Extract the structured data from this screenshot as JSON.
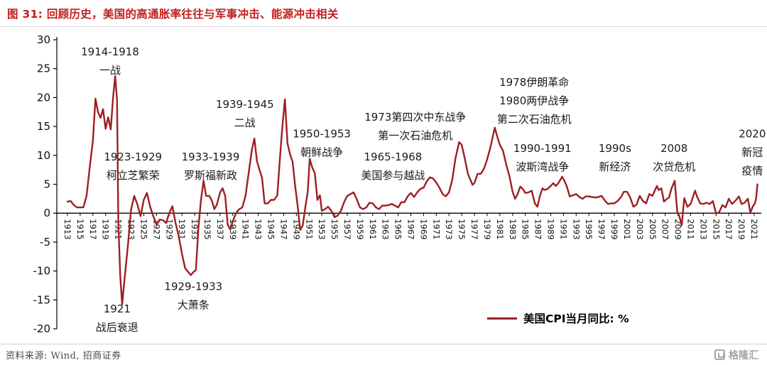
{
  "header": {
    "title": "图 31: 回顾历史，美国的高通胀率往往与军事冲击、能源冲击相关"
  },
  "colors": {
    "title_red": "#C01E1E",
    "line_red": "#9C1F24"
  },
  "footer": {
    "source": "资料来源: Wind, 招商证券",
    "logo_text": "格隆汇"
  },
  "chart_data": {
    "type": "line",
    "title": "回顾历史，美国的高通胀率往往与军事冲击、能源冲击相关",
    "legend_label": "美国CPI当月同比: %",
    "legend_position": "bottom-right",
    "grid": false,
    "ylim": [
      -20,
      30
    ],
    "yticks": [
      30,
      25,
      20,
      15,
      10,
      5,
      0,
      -5,
      -10,
      -15,
      -20
    ],
    "x_range": [
      1913,
      2021
    ],
    "xticks": [
      1913,
      1915,
      1917,
      1919,
      1921,
      1923,
      1925,
      1927,
      1929,
      1931,
      1933,
      1935,
      1937,
      1939,
      1941,
      1943,
      1945,
      1947,
      1949,
      1951,
      1953,
      1955,
      1957,
      1959,
      1961,
      1963,
      1965,
      1967,
      1969,
      1971,
      1973,
      1975,
      1977,
      1979,
      1981,
      1983,
      1985,
      1987,
      1989,
      1991,
      1993,
      1995,
      1997,
      1999,
      2001,
      2003,
      2005,
      2007,
      2009,
      2011,
      2013,
      2015,
      2017,
      2019,
      2021
    ],
    "series": [
      {
        "name": "美国CPI当月同比: %",
        "color": "#9C1F24",
        "points": [
          [
            1913,
            2
          ],
          [
            1913.5,
            2.1
          ],
          [
            1914,
            1.4
          ],
          [
            1914.5,
            1
          ],
          [
            1915,
            1
          ],
          [
            1915.5,
            1
          ],
          [
            1916,
            3
          ],
          [
            1916.5,
            7.9
          ],
          [
            1917,
            12.5
          ],
          [
            1917.4,
            19.8
          ],
          [
            1917.8,
            17.5
          ],
          [
            1918.2,
            16.5
          ],
          [
            1918.6,
            18
          ],
          [
            1919,
            14.6
          ],
          [
            1919.4,
            16.6
          ],
          [
            1919.8,
            14.5
          ],
          [
            1920.2,
            20.4
          ],
          [
            1920.5,
            23.7
          ],
          [
            1920.8,
            19.6
          ],
          [
            1921,
            -1.6
          ],
          [
            1921.3,
            -10.8
          ],
          [
            1921.6,
            -15.8
          ],
          [
            1922,
            -11.1
          ],
          [
            1922.5,
            -5.6
          ],
          [
            1923,
            0.6
          ],
          [
            1923.5,
            3
          ],
          [
            1924,
            1.5
          ],
          [
            1924.5,
            -0.5
          ],
          [
            1925,
            2.3
          ],
          [
            1925.5,
            3.5
          ],
          [
            1926,
            1.1
          ],
          [
            1926.5,
            -0.5
          ],
          [
            1927,
            -2
          ],
          [
            1927.5,
            -1.1
          ],
          [
            1928,
            -1.2
          ],
          [
            1928.5,
            -1.7
          ],
          [
            1929,
            0
          ],
          [
            1929.5,
            1.2
          ],
          [
            1930,
            -1.7
          ],
          [
            1930.5,
            -4
          ],
          [
            1931,
            -7
          ],
          [
            1931.5,
            -9.5
          ],
          [
            1932,
            -10.2
          ],
          [
            1932.4,
            -10.7
          ],
          [
            1932.8,
            -10.2
          ],
          [
            1933.2,
            -9.8
          ],
          [
            1933.6,
            -2.5
          ],
          [
            1934,
            2.3
          ],
          [
            1934.4,
            5.6
          ],
          [
            1934.8,
            3
          ],
          [
            1935.3,
            3
          ],
          [
            1935.7,
            2.2
          ],
          [
            1936.1,
            0.7
          ],
          [
            1936.5,
            1.5
          ],
          [
            1937,
            3.6
          ],
          [
            1937.4,
            4.3
          ],
          [
            1937.8,
            3
          ],
          [
            1938.2,
            -2
          ],
          [
            1938.6,
            -2.8
          ],
          [
            1939,
            -1.4
          ],
          [
            1939.5,
            0
          ],
          [
            1940,
            0.7
          ],
          [
            1940.5,
            1
          ],
          [
            1941,
            3
          ],
          [
            1941.5,
            7
          ],
          [
            1942,
            11
          ],
          [
            1942.4,
            12.9
          ],
          [
            1942.8,
            9
          ],
          [
            1943.2,
            7.5
          ],
          [
            1943.6,
            6.1
          ],
          [
            1944,
            1.7
          ],
          [
            1944.5,
            1.7
          ],
          [
            1945,
            2.3
          ],
          [
            1945.5,
            2.3
          ],
          [
            1946,
            3.1
          ],
          [
            1946.4,
            9.4
          ],
          [
            1946.8,
            15
          ],
          [
            1947.2,
            19.7
          ],
          [
            1947.6,
            12.1
          ],
          [
            1948,
            10.2
          ],
          [
            1948.4,
            8.9
          ],
          [
            1948.8,
            4.8
          ],
          [
            1949.2,
            1.3
          ],
          [
            1949.6,
            -2.9
          ],
          [
            1950,
            -2.1
          ],
          [
            1950.4,
            1
          ],
          [
            1950.8,
            3.8
          ],
          [
            1951.1,
            9.4
          ],
          [
            1951.5,
            7.9
          ],
          [
            1951.9,
            6.9
          ],
          [
            1952.3,
            2.3
          ],
          [
            1952.7,
            3.1
          ],
          [
            1953,
            0.4
          ],
          [
            1953.5,
            0.7
          ],
          [
            1954,
            1.1
          ],
          [
            1954.5,
            0.4
          ],
          [
            1955,
            -0.7
          ],
          [
            1955.5,
            -0.4
          ],
          [
            1956,
            0.4
          ],
          [
            1956.5,
            1.9
          ],
          [
            1957,
            3
          ],
          [
            1957.5,
            3.3
          ],
          [
            1958,
            3.6
          ],
          [
            1958.5,
            2.4
          ],
          [
            1959,
            1
          ],
          [
            1959.5,
            0.7
          ],
          [
            1960,
            1
          ],
          [
            1960.5,
            1.8
          ],
          [
            1961,
            1.7
          ],
          [
            1961.5,
            1
          ],
          [
            1962,
            0.7
          ],
          [
            1962.5,
            1.3
          ],
          [
            1963,
            1.3
          ],
          [
            1963.5,
            1.4
          ],
          [
            1964,
            1.6
          ],
          [
            1964.5,
            1.3
          ],
          [
            1965,
            1
          ],
          [
            1965.5,
            1.9
          ],
          [
            1966,
            1.9
          ],
          [
            1966.5,
            2.9
          ],
          [
            1967,
            3.5
          ],
          [
            1967.5,
            2.8
          ],
          [
            1968,
            3.6
          ],
          [
            1968.5,
            4.2
          ],
          [
            1969,
            4.4
          ],
          [
            1969.5,
            5.5
          ],
          [
            1970,
            6.2
          ],
          [
            1970.5,
            6
          ],
          [
            1971,
            5.3
          ],
          [
            1971.5,
            4.4
          ],
          [
            1972,
            3.3
          ],
          [
            1972.5,
            2.9
          ],
          [
            1973,
            3.6
          ],
          [
            1973.5,
            5.7
          ],
          [
            1974,
            9.4
          ],
          [
            1974.6,
            12.3
          ],
          [
            1975,
            11.8
          ],
          [
            1975.5,
            9.4
          ],
          [
            1976,
            6.7
          ],
          [
            1976.7,
            4.9
          ],
          [
            1977,
            5.2
          ],
          [
            1977.5,
            6.8
          ],
          [
            1978,
            6.8
          ],
          [
            1978.5,
            7.7
          ],
          [
            1979,
            9.3
          ],
          [
            1979.5,
            11.3
          ],
          [
            1980.2,
            14.8
          ],
          [
            1980.7,
            12.8
          ],
          [
            1981,
            11.8
          ],
          [
            1981.5,
            10.8
          ],
          [
            1982,
            8.4
          ],
          [
            1982.5,
            6.4
          ],
          [
            1983,
            3.7
          ],
          [
            1983.4,
            2.5
          ],
          [
            1983.8,
            3.3
          ],
          [
            1984.2,
            4.6
          ],
          [
            1984.6,
            4.2
          ],
          [
            1985,
            3.5
          ],
          [
            1985.5,
            3.6
          ],
          [
            1986,
            3.9
          ],
          [
            1986.5,
            1.7
          ],
          [
            1986.9,
            1.1
          ],
          [
            1987.3,
            3
          ],
          [
            1987.7,
            4.3
          ],
          [
            1988,
            4
          ],
          [
            1988.5,
            4.2
          ],
          [
            1989,
            4.7
          ],
          [
            1989.4,
            5.2
          ],
          [
            1989.8,
            4.7
          ],
          [
            1990.2,
            5.2
          ],
          [
            1990.8,
            6.3
          ],
          [
            1991.1,
            5.7
          ],
          [
            1991.5,
            4.7
          ],
          [
            1992,
            2.9
          ],
          [
            1992.5,
            3.1
          ],
          [
            1993,
            3.3
          ],
          [
            1993.5,
            2.8
          ],
          [
            1994,
            2.5
          ],
          [
            1994.5,
            2.9
          ],
          [
            1995,
            2.9
          ],
          [
            1995.5,
            2.8
          ],
          [
            1996,
            2.7
          ],
          [
            1996.5,
            2.8
          ],
          [
            1997,
            3
          ],
          [
            1997.5,
            2.2
          ],
          [
            1998,
            1.6
          ],
          [
            1998.5,
            1.7
          ],
          [
            1999,
            1.7
          ],
          [
            1999.5,
            2.1
          ],
          [
            2000,
            2.7
          ],
          [
            2000.5,
            3.7
          ],
          [
            2001,
            3.7
          ],
          [
            2001.5,
            2.7
          ],
          [
            2002,
            1.1
          ],
          [
            2002.5,
            1.5
          ],
          [
            2003,
            3
          ],
          [
            2003.5,
            2.1
          ],
          [
            2004,
            1.7
          ],
          [
            2004.5,
            3.3
          ],
          [
            2005,
            3
          ],
          [
            2005.7,
            4.7
          ],
          [
            2006,
            4
          ],
          [
            2006.4,
            4.3
          ],
          [
            2006.8,
            2
          ],
          [
            2007.2,
            2.4
          ],
          [
            2007.6,
            2.7
          ],
          [
            2008,
            4.3
          ],
          [
            2008.5,
            5.6
          ],
          [
            2008.9,
            0.1
          ],
          [
            2009.2,
            -0.4
          ],
          [
            2009.6,
            -2.1
          ],
          [
            2010,
            2.6
          ],
          [
            2010.5,
            1.1
          ],
          [
            2011,
            1.6
          ],
          [
            2011.7,
            3.9
          ],
          [
            2012,
            2.9
          ],
          [
            2012.5,
            1.7
          ],
          [
            2013,
            1.6
          ],
          [
            2013.5,
            1.8
          ],
          [
            2014,
            1.6
          ],
          [
            2014.5,
            2.1
          ],
          [
            2015,
            -0.1
          ],
          [
            2015.5,
            0.2
          ],
          [
            2016,
            1.4
          ],
          [
            2016.5,
            1
          ],
          [
            2017,
            2.5
          ],
          [
            2017.5,
            1.6
          ],
          [
            2018,
            2.1
          ],
          [
            2018.6,
            2.9
          ],
          [
            2019,
            1.6
          ],
          [
            2019.5,
            1.8
          ],
          [
            2020,
            2.5
          ],
          [
            2020.4,
            0.1
          ],
          [
            2020.8,
            1.2
          ],
          [
            2021.1,
            1.7
          ],
          [
            2021.3,
            2.6
          ],
          [
            2021.5,
            5
          ]
        ]
      }
    ],
    "annotations": [
      {
        "x": 1919.7,
        "y": 27.3,
        "lines": [
          "1914-1918",
          "一战"
        ]
      },
      {
        "x": 1923.3,
        "y": 9.1,
        "lines": [
          "1923-1929",
          "柯立芝繁荣"
        ]
      },
      {
        "x": 1920.8,
        "y": -17.2,
        "lines": [
          "1921",
          "战后衰退"
        ]
      },
      {
        "x": 1932.8,
        "y": -13.3,
        "lines": [
          "1929-1933",
          "大萧条"
        ]
      },
      {
        "x": 1935.5,
        "y": 9.1,
        "lines": [
          "1933-1939",
          "罗斯福新政"
        ]
      },
      {
        "x": 1940.9,
        "y": 18.2,
        "lines": [
          "1939-1945",
          "二战"
        ]
      },
      {
        "x": 1953.0,
        "y": 13.1,
        "lines": [
          "1950-1953",
          "朝鲜战争"
        ]
      },
      {
        "x": 1964.2,
        "y": 9.1,
        "lines": [
          "1965-1968",
          "美国参与越战"
        ]
      },
      {
        "x": 1967.7,
        "y": 16.0,
        "lines": [
          "1973第四次中东战争",
          "第一次石油危机"
        ]
      },
      {
        "x": 1986.4,
        "y": 22.0,
        "lines": [
          "1978伊朗革命",
          "1980两伊战争",
          "第二次石油危机"
        ]
      },
      {
        "x": 1987.7,
        "y": 10.6,
        "lines": [
          "1990-1991",
          "波斯湾战争"
        ]
      },
      {
        "x": 1999.1,
        "y": 10.6,
        "lines": [
          "1990s",
          "新经济"
        ]
      },
      {
        "x": 2008.4,
        "y": 10.6,
        "lines": [
          "2008",
          "次贷危机"
        ]
      },
      {
        "x": 2020.7,
        "y": 13.1,
        "lines": [
          "2020",
          "新冠",
          "疫情"
        ]
      }
    ]
  }
}
